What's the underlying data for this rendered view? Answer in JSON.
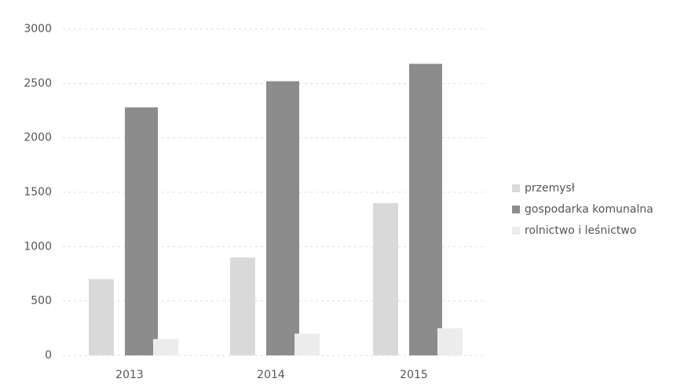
{
  "chart_data": {
    "type": "bar",
    "categories": [
      "2013",
      "2014",
      "2015"
    ],
    "series": [
      {
        "name": "przemysł",
        "color": "#d9d9d9",
        "values": [
          700,
          900,
          1400
        ]
      },
      {
        "name": "gospodarka komunalna",
        "color": "#8c8c8c",
        "values": [
          2280,
          2520,
          2680
        ]
      },
      {
        "name": "rolnictwo i leśnictwo",
        "color": "#ececec",
        "values": [
          150,
          200,
          250
        ]
      }
    ],
    "ylim": [
      0,
      3000
    ],
    "yticks": [
      0,
      500,
      1000,
      1500,
      2000,
      2500,
      3000
    ],
    "grid": true,
    "legend": "right"
  }
}
